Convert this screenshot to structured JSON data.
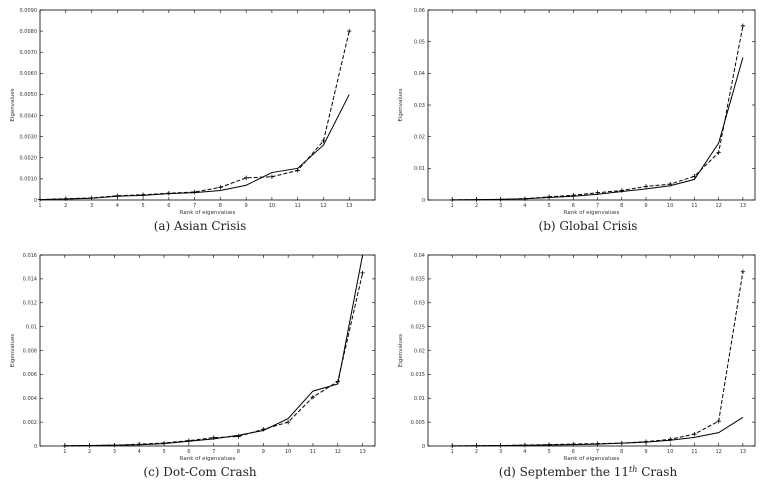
{
  "chart_data": [
    {
      "type": "line",
      "caption": "(a) Asian Crisis",
      "xlabel": "Rank of eigenvalues",
      "ylabel": "Eigenvalues",
      "x": [
        1,
        2,
        3,
        4,
        5,
        6,
        7,
        8,
        9,
        10,
        11,
        12,
        13
      ],
      "x_tick_labels": [
        "1",
        "2",
        "3",
        "4",
        "5",
        "6",
        "7",
        "8",
        "9",
        "10",
        "11",
        "12",
        "13"
      ],
      "x_tick_values": [
        1,
        2,
        3,
        4,
        5,
        6,
        7,
        8,
        9,
        10,
        11,
        12,
        13
      ],
      "xlim": [
        1,
        14
      ],
      "ylim": [
        0,
        0.009
      ],
      "y_ticks": [
        0,
        0.001,
        0.002,
        0.003,
        0.004,
        0.005,
        0.006,
        0.007,
        0.008,
        0.009
      ],
      "y_tick_labels": [
        "0",
        "0.0010",
        "0.0020",
        "0.0030",
        "0.0040",
        "0.0050",
        "0.0060",
        "0.0070",
        "0.0080",
        "0.0090"
      ],
      "series": [
        {
          "style": "solid",
          "marker": "none",
          "values": [
            2e-05,
            5e-05,
            8e-05,
            0.00018,
            0.00022,
            0.0003,
            0.00035,
            0.00045,
            0.0007,
            0.0013,
            0.0015,
            0.0026,
            0.005
          ]
        },
        {
          "style": "dashed",
          "marker": "plus",
          "values": [
            2e-05,
            6e-05,
            0.0001,
            0.0002,
            0.00025,
            0.00032,
            0.00038,
            0.0006,
            0.00105,
            0.0011,
            0.0014,
            0.0028,
            0.008
          ]
        }
      ]
    },
    {
      "type": "line",
      "caption": "(b) Global Crisis",
      "xlabel": "Rank of eigenvalues",
      "ylabel": "Eigenvalues",
      "x": [
        1,
        2,
        3,
        4,
        5,
        6,
        7,
        8,
        9,
        10,
        11,
        12,
        13
      ],
      "x_tick_labels": [
        "1",
        "2",
        "3",
        "4",
        "5",
        "6",
        "7",
        "8",
        "9",
        "10",
        "11",
        "12",
        "13"
      ],
      "x_tick_values": [
        1,
        2,
        3,
        4,
        5,
        6,
        7,
        8,
        9,
        10,
        11,
        12,
        13
      ],
      "xlim": [
        0,
        13.5
      ],
      "ylim": [
        0,
        0.06
      ],
      "y_ticks": [
        0,
        0.01,
        0.02,
        0.03,
        0.04,
        0.05,
        0.06
      ],
      "y_tick_labels": [
        "0",
        "0.01",
        "0.02",
        "0.03",
        "0.04",
        "0.05",
        "0.06"
      ],
      "series": [
        {
          "style": "solid",
          "marker": "none",
          "values": [
            5e-05,
            0.0001,
            0.0002,
            0.0004,
            0.0008,
            0.0012,
            0.0018,
            0.0027,
            0.0035,
            0.0045,
            0.0065,
            0.018,
            0.045
          ]
        },
        {
          "style": "dashed",
          "marker": "plus",
          "values": [
            5e-05,
            0.0001,
            0.0002,
            0.0004,
            0.001,
            0.0015,
            0.0023,
            0.003,
            0.0043,
            0.005,
            0.0075,
            0.015,
            0.055
          ]
        }
      ]
    },
    {
      "type": "line",
      "caption": "(c) Dot-Com Crash",
      "xlabel": "Rank of eigenvalues",
      "ylabel": "Eigenvalues",
      "x": [
        1,
        2,
        3,
        4,
        5,
        6,
        7,
        8,
        9,
        10,
        11,
        12,
        13
      ],
      "x_tick_labels": [
        "1",
        "2",
        "3",
        "4",
        "5",
        "6",
        "7",
        "8",
        "9",
        "10",
        "11",
        "12",
        "13"
      ],
      "x_tick_values": [
        1,
        2,
        3,
        4,
        5,
        6,
        7,
        8,
        9,
        10,
        11,
        12,
        13
      ],
      "xlim": [
        0,
        13.5
      ],
      "ylim": [
        0,
        0.016
      ],
      "y_ticks": [
        0,
        0.002,
        0.004,
        0.006,
        0.008,
        0.01,
        0.012,
        0.014,
        0.016
      ],
      "y_tick_labels": [
        "0",
        "0.002",
        "0.004",
        "0.006",
        "0.008",
        "0.01",
        "0.012",
        "0.014",
        "0.016"
      ],
      "series": [
        {
          "style": "solid",
          "marker": "none",
          "values": [
            2e-05,
            4e-05,
            7e-05,
            0.0001,
            0.0002,
            0.0004,
            0.0006,
            0.0009,
            0.0013,
            0.0023,
            0.0046,
            0.0052,
            0.016
          ]
        },
        {
          "style": "dashed",
          "marker": "plus",
          "values": [
            2e-05,
            4e-05,
            7e-05,
            0.00015,
            0.00025,
            0.00045,
            0.0007,
            0.0008,
            0.0014,
            0.002,
            0.0041,
            0.0054,
            0.0145
          ]
        }
      ]
    },
    {
      "type": "line",
      "caption": "(d) September the 11",
      "caption_sup": "th",
      "caption_tail": " Crash",
      "xlabel": "Rank of eigenvalues",
      "ylabel": "Eigenvalues",
      "x": [
        1,
        2,
        3,
        4,
        5,
        6,
        7,
        8,
        9,
        10,
        11,
        12,
        13
      ],
      "x_tick_labels": [
        "1",
        "2",
        "3",
        "4",
        "5",
        "6",
        "7",
        "8",
        "9",
        "10",
        "11",
        "12",
        "13"
      ],
      "x_tick_values": [
        1,
        2,
        3,
        4,
        5,
        6,
        7,
        8,
        9,
        10,
        11,
        12,
        13
      ],
      "xlim": [
        0,
        13.5
      ],
      "ylim": [
        0,
        0.04
      ],
      "y_ticks": [
        0,
        0.005,
        0.01,
        0.015,
        0.02,
        0.025,
        0.03,
        0.035,
        0.04
      ],
      "y_tick_labels": [
        "0",
        "0.005",
        "0.01",
        "0.015",
        "0.02",
        "0.025",
        "0.03",
        "0.035",
        "0.04"
      ],
      "series": [
        {
          "style": "solid",
          "marker": "none",
          "values": [
            2e-05,
            5e-05,
            0.0001,
            0.00015,
            0.0002,
            0.0003,
            0.0004,
            0.0006,
            0.0008,
            0.0012,
            0.0018,
            0.0028,
            0.006
          ]
        },
        {
          "style": "dashed",
          "marker": "plus",
          "values": [
            2e-05,
            5e-05,
            0.0001,
            0.0002,
            0.0003,
            0.0004,
            0.0005,
            0.0006,
            0.0009,
            0.0014,
            0.0025,
            0.0052,
            0.0365
          ]
        }
      ]
    }
  ]
}
